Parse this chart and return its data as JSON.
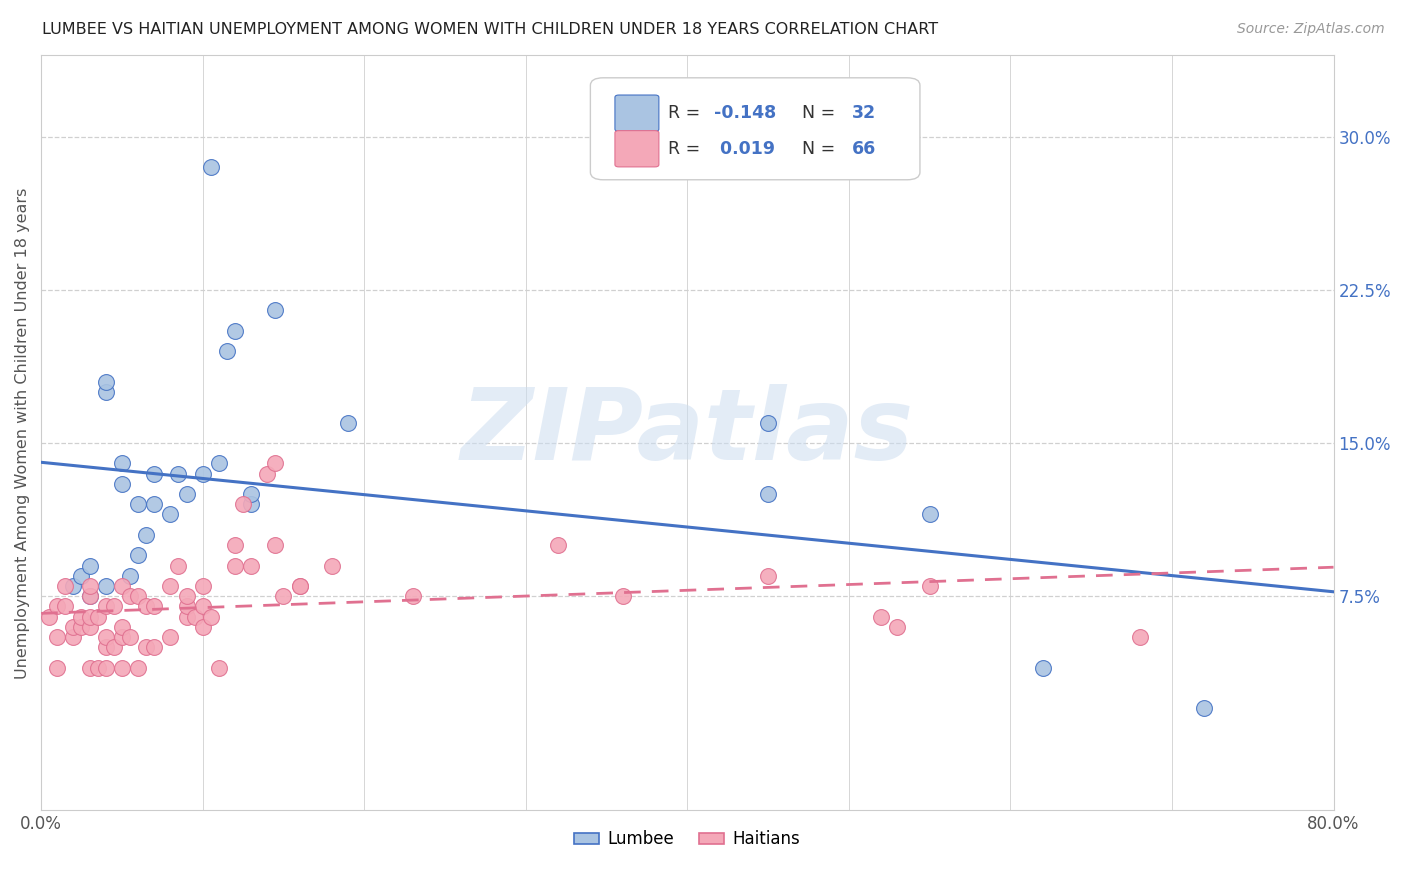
{
  "title": "LUMBEE VS HAITIAN UNEMPLOYMENT AMONG WOMEN WITH CHILDREN UNDER 18 YEARS CORRELATION CHART",
  "source": "Source: ZipAtlas.com",
  "ylabel": "Unemployment Among Women with Children Under 18 years",
  "xlim": [
    0,
    0.8
  ],
  "ylim": [
    -0.03,
    0.34
  ],
  "yticks_right": [
    0.075,
    0.15,
    0.225,
    0.3
  ],
  "ytick_right_labels": [
    "7.5%",
    "15.0%",
    "22.5%",
    "30.0%"
  ],
  "legend_lumbee": "Lumbee",
  "legend_haitians": "Haitians",
  "r_lumbee": "-0.148",
  "n_lumbee": "32",
  "r_haitians": "0.019",
  "n_haitians": "66",
  "lumbee_color": "#aac4e2",
  "haitian_color": "#f4a8b8",
  "lumbee_line_color": "#4472c4",
  "haitian_line_color": "#e07090",
  "lumbee_x": [
    0.02,
    0.025,
    0.03,
    0.03,
    0.04,
    0.04,
    0.04,
    0.05,
    0.05,
    0.055,
    0.06,
    0.06,
    0.065,
    0.07,
    0.07,
    0.08,
    0.085,
    0.09,
    0.1,
    0.105,
    0.11,
    0.115,
    0.12,
    0.13,
    0.13,
    0.145,
    0.19,
    0.45,
    0.45,
    0.55,
    0.62,
    0.72
  ],
  "lumbee_y": [
    0.08,
    0.085,
    0.075,
    0.09,
    0.175,
    0.18,
    0.08,
    0.13,
    0.14,
    0.085,
    0.12,
    0.095,
    0.105,
    0.12,
    0.135,
    0.115,
    0.135,
    0.125,
    0.135,
    0.285,
    0.14,
    0.195,
    0.205,
    0.12,
    0.125,
    0.215,
    0.16,
    0.16,
    0.125,
    0.115,
    0.04,
    0.02
  ],
  "haitian_x": [
    0.005,
    0.01,
    0.01,
    0.01,
    0.015,
    0.015,
    0.02,
    0.02,
    0.025,
    0.025,
    0.03,
    0.03,
    0.03,
    0.03,
    0.03,
    0.035,
    0.035,
    0.04,
    0.04,
    0.04,
    0.04,
    0.045,
    0.045,
    0.05,
    0.05,
    0.05,
    0.05,
    0.055,
    0.055,
    0.06,
    0.06,
    0.065,
    0.065,
    0.07,
    0.07,
    0.08,
    0.08,
    0.085,
    0.09,
    0.09,
    0.09,
    0.095,
    0.1,
    0.1,
    0.1,
    0.105,
    0.11,
    0.12,
    0.12,
    0.125,
    0.13,
    0.14,
    0.145,
    0.145,
    0.15,
    0.16,
    0.16,
    0.18,
    0.23,
    0.32,
    0.36,
    0.45,
    0.52,
    0.53,
    0.55,
    0.68
  ],
  "haitian_y": [
    0.065,
    0.04,
    0.055,
    0.07,
    0.07,
    0.08,
    0.055,
    0.06,
    0.06,
    0.065,
    0.04,
    0.06,
    0.065,
    0.075,
    0.08,
    0.04,
    0.065,
    0.04,
    0.05,
    0.055,
    0.07,
    0.05,
    0.07,
    0.04,
    0.055,
    0.06,
    0.08,
    0.055,
    0.075,
    0.04,
    0.075,
    0.05,
    0.07,
    0.05,
    0.07,
    0.055,
    0.08,
    0.09,
    0.065,
    0.07,
    0.075,
    0.065,
    0.06,
    0.07,
    0.08,
    0.065,
    0.04,
    0.09,
    0.1,
    0.12,
    0.09,
    0.135,
    0.14,
    0.1,
    0.075,
    0.08,
    0.08,
    0.09,
    0.075,
    0.1,
    0.075,
    0.085,
    0.065,
    0.06,
    0.08,
    0.055
  ],
  "watermark": "ZIPatlas",
  "background_color": "#ffffff",
  "grid_color": "#d0d0d0"
}
